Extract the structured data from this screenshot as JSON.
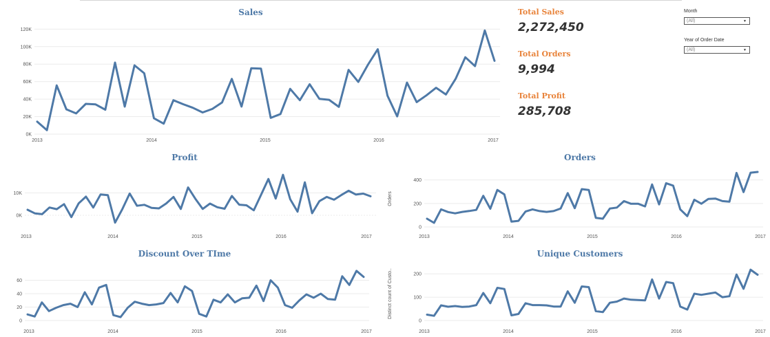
{
  "kpis": {
    "total_sales_label": "Total Sales",
    "total_sales_value": "2,272,450",
    "total_orders_label": "Total Orders",
    "total_orders_value": "9,994",
    "total_profit_label": "Total Profit",
    "total_profit_value": "285,708"
  },
  "filters": {
    "month_label": "Month",
    "month_value": "(All)",
    "year_label": "Year of Order Date",
    "year_value": "(All)"
  },
  "colors": {
    "line": "#4e79a7",
    "title": "#4e79a7",
    "kpi_label": "#e8833a",
    "grid": "#ebebeb"
  },
  "chart_data": [
    {
      "id": "sales",
      "type": "line",
      "title": "Sales",
      "ylabel": "",
      "x_labels": [
        "2013",
        "2014",
        "2015",
        "2016",
        "2017"
      ],
      "y_ticks": [
        0,
        20000,
        40000,
        60000,
        80000,
        100000,
        120000
      ],
      "y_tick_labels": [
        "0K",
        "20K",
        "40K",
        "60K",
        "80K",
        "100K",
        "120K"
      ],
      "ylim": [
        0,
        125000
      ],
      "grid": true,
      "values": [
        14237,
        4520,
        55691,
        28295,
        23648,
        34595,
        33946,
        27909,
        81777,
        31453,
        78629,
        69546,
        18174,
        11951,
        38726,
        34195,
        30132,
        24797,
        28765,
        36141,
        63121,
        31470,
        75229,
        74920,
        18542,
        22979,
        51716,
        38750,
        56988,
        40345,
        39262,
        31115,
        73410,
        59687,
        79412,
        96999,
        43971,
        20301,
        58872,
        36522,
        44261,
        52982,
        45264,
        63121,
        87867,
        77777,
        118448,
        83829
      ]
    },
    {
      "id": "profit",
      "type": "line",
      "title": "Profit",
      "ylabel": "",
      "x_labels": [
        "2013",
        "2014",
        "2015",
        "2016",
        "2017"
      ],
      "y_ticks": [
        0,
        10000
      ],
      "y_tick_labels": [
        "0K",
        "10K"
      ],
      "ylim": [
        -4000,
        20000
      ],
      "grid": true,
      "values": [
        2450,
        862,
        499,
        3489,
        2738,
        4977,
        -841,
        5318,
        8329,
        3448,
        9292,
        8984,
        -3281,
        2814,
        9732,
        4248,
        4668,
        3336,
        3064,
        5250,
        8210,
        2825,
        12474,
        7345,
        2817,
        5229,
        3612,
        2923,
        8643,
        4730,
        4455,
        2219,
        9187,
        16254,
        7464,
        18100,
        7140,
        1613,
        14752,
        933,
        6342,
        8223,
        6953,
        9040,
        10991,
        9275,
        9690,
        8483
      ]
    },
    {
      "id": "orders",
      "type": "line",
      "title": "Orders",
      "ylabel": "Orders",
      "x_labels": [
        "2013",
        "2014",
        "2015",
        "2016",
        "2017"
      ],
      "y_ticks": [
        0,
        200,
        400
      ],
      "y_tick_labels": [
        "0",
        "200",
        "400"
      ],
      "ylim": [
        0,
        480
      ],
      "grid": true,
      "values": [
        70,
        35,
        150,
        127,
        116,
        128,
        136,
        145,
        265,
        155,
        315,
        277,
        45,
        52,
        131,
        150,
        135,
        128,
        135,
        157,
        288,
        160,
        322,
        315,
        78,
        70,
        157,
        165,
        220,
        197,
        198,
        175,
        362,
        192,
        372,
        352,
        150,
        92,
        232,
        198,
        238,
        242,
        220,
        215,
        460,
        297,
        462,
        468
      ]
    },
    {
      "id": "discount",
      "type": "line",
      "title": "Discount Over TIme",
      "ylabel": "",
      "x_labels": [
        "2013",
        "2014",
        "2015",
        "2016",
        "2017"
      ],
      "y_ticks": [
        0,
        20,
        40,
        60
      ],
      "y_tick_labels": [
        "0",
        "20",
        "40",
        "60"
      ],
      "ylim": [
        0,
        80
      ],
      "grid": true,
      "values": [
        9,
        6,
        27,
        14,
        19,
        23,
        25,
        20,
        42,
        24,
        49,
        53,
        8,
        5,
        19,
        28,
        25,
        23,
        24,
        26,
        41,
        27,
        51,
        44,
        10,
        6,
        31,
        27,
        39,
        27,
        33,
        34,
        52,
        29,
        60,
        49,
        23,
        19,
        30,
        39,
        34,
        40,
        32,
        31,
        66,
        53,
        74,
        65
      ]
    },
    {
      "id": "customers",
      "type": "line",
      "title": "Unique Customers",
      "ylabel": "Distinct count of Custo..",
      "x_labels": [
        "2013",
        "2014",
        "2015",
        "2016",
        "2017"
      ],
      "y_ticks": [
        0,
        100,
        200
      ],
      "y_tick_labels": [
        "0",
        "100",
        "200"
      ],
      "ylim": [
        0,
        230
      ],
      "grid": true,
      "values": [
        25,
        20,
        65,
        59,
        62,
        58,
        60,
        66,
        118,
        74,
        140,
        135,
        22,
        28,
        74,
        66,
        66,
        65,
        60,
        60,
        125,
        76,
        146,
        143,
        40,
        36,
        76,
        81,
        94,
        89,
        88,
        86,
        176,
        94,
        165,
        160,
        60,
        47,
        115,
        110,
        115,
        120,
        100,
        104,
        197,
        136,
        218,
        196
      ]
    }
  ]
}
